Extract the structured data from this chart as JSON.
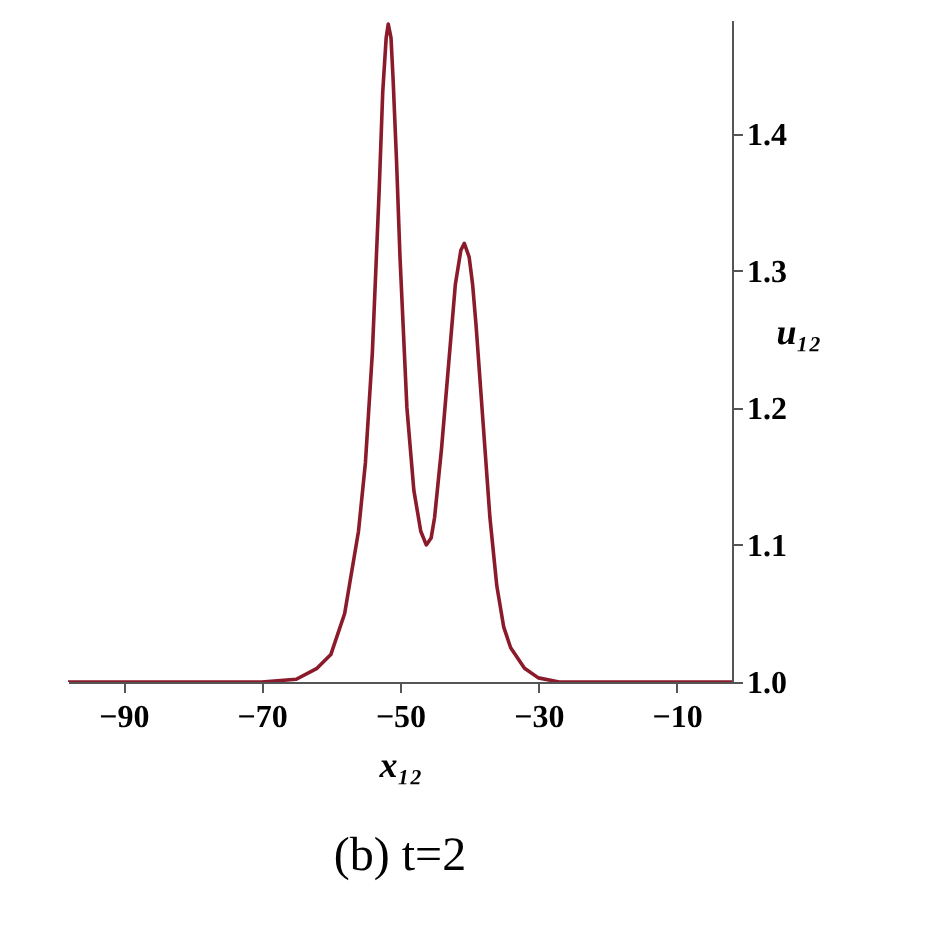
{
  "chart_data": {
    "type": "line",
    "title": "(b) t=2",
    "xlabel": "x₁₂",
    "ylabel": "u₁₂",
    "xlim": [
      -98,
      -2
    ],
    "xticks": [
      -90,
      -70,
      -50,
      -30,
      -10
    ],
    "ylim": [
      1.0,
      1.483
    ],
    "yticks": [
      {
        "value": 1.0,
        "label": "1.0"
      },
      1.1,
      1.2,
      1.3,
      1.4
    ],
    "grid": false,
    "series": [
      {
        "color": "#8b1a2b",
        "x": [
          -98,
          -70,
          -65,
          -62,
          -60,
          -58,
          -56,
          -55,
          -54,
          -53,
          -52.5,
          -52,
          -51.7,
          -51.3,
          -51,
          -50.5,
          -50,
          -49,
          -48,
          -47,
          -46.2,
          -45.5,
          -45,
          -44,
          -43,
          -42,
          -41.2,
          -40.7,
          -40,
          -39.5,
          -39,
          -38,
          -37,
          -36,
          -35,
          -34,
          -32,
          -30,
          -27,
          -2
        ],
        "values": [
          1.0,
          1.0,
          1.002,
          1.01,
          1.02,
          1.05,
          1.11,
          1.16,
          1.24,
          1.36,
          1.43,
          1.47,
          1.48,
          1.47,
          1.44,
          1.38,
          1.31,
          1.2,
          1.14,
          1.11,
          1.1,
          1.105,
          1.12,
          1.17,
          1.23,
          1.29,
          1.315,
          1.32,
          1.31,
          1.29,
          1.26,
          1.19,
          1.12,
          1.07,
          1.04,
          1.025,
          1.01,
          1.003,
          1.0,
          1.0
        ]
      }
    ]
  }
}
